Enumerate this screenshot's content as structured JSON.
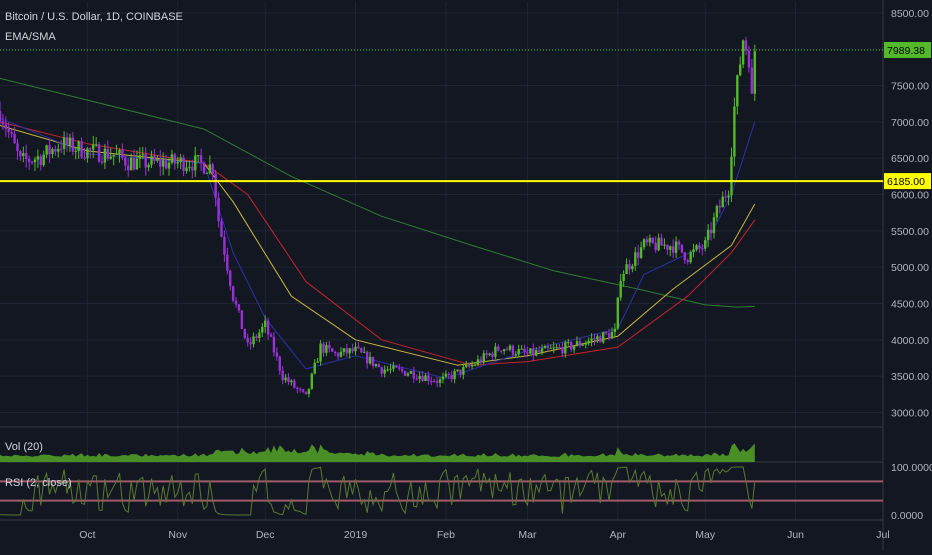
{
  "header": {
    "title": "Bitcoin / U.S. Dollar, 1D, COINBASE",
    "indicator": "EMA/SMA"
  },
  "panes": {
    "volume_label": "Vol (20)",
    "rsi_label": "RSI (2, close)"
  },
  "colors": {
    "background": "#131722",
    "grid": "#1e2433",
    "up": "#53b928",
    "down": "#9b30d9",
    "hline": "#ffff00",
    "price_line": "#53b928",
    "ema_fast": "#2a32a8",
    "ema_mid": "#c8b63a",
    "ema_slow": "#c8242a",
    "sma_long": "#2e7d32",
    "volume": "#4a8f26",
    "rsi_line": "#5a7a30",
    "rsi_band": "#a05a6a"
  },
  "chart_data": {
    "type": "candlestick",
    "symbol": "Bitcoin / U.S. Dollar, 1D, COINBASE",
    "x_ticks": [
      "Oct",
      "Nov",
      "Dec",
      "2019",
      "Feb",
      "Mar",
      "Apr",
      "May",
      "Jun",
      "Jul"
    ],
    "y_ticks": [
      "8500.00",
      "8000.00",
      "7500.00",
      "7000.00",
      "6500.00",
      "6000.00",
      "5500.00",
      "5000.00",
      "4500.00",
      "4000.00",
      "3500.00",
      "3000.00"
    ],
    "ylim": [
      2800,
      8650
    ],
    "x_range": [
      "2018-09-01",
      "2019-07-01"
    ],
    "last_price": "7989.38",
    "horizontal_line": "6185.00",
    "closes": [
      {
        "date": "2018-09-01",
        "close": 7150
      },
      {
        "date": "2018-09-08",
        "close": 6450
      },
      {
        "date": "2018-09-15",
        "close": 6520
      },
      {
        "date": "2018-09-22",
        "close": 6700
      },
      {
        "date": "2018-10-01",
        "close": 6600
      },
      {
        "date": "2018-10-10",
        "close": 6550
      },
      {
        "date": "2018-10-15",
        "close": 6450
      },
      {
        "date": "2018-10-25",
        "close": 6430
      },
      {
        "date": "2018-11-05",
        "close": 6450
      },
      {
        "date": "2018-11-13",
        "close": 6380
      },
      {
        "date": "2018-11-15",
        "close": 5650
      },
      {
        "date": "2018-11-20",
        "close": 4600
      },
      {
        "date": "2018-11-25",
        "close": 3900
      },
      {
        "date": "2018-12-01",
        "close": 4200
      },
      {
        "date": "2018-12-07",
        "close": 3500
      },
      {
        "date": "2018-12-15",
        "close": 3200
      },
      {
        "date": "2018-12-20",
        "close": 3900
      },
      {
        "date": "2018-12-25",
        "close": 3800
      },
      {
        "date": "2019-01-01",
        "close": 3850
      },
      {
        "date": "2019-01-10",
        "close": 3600
      },
      {
        "date": "2019-01-20",
        "close": 3550
      },
      {
        "date": "2019-01-30",
        "close": 3430
      },
      {
        "date": "2019-02-08",
        "close": 3600
      },
      {
        "date": "2019-02-20",
        "close": 3900
      },
      {
        "date": "2019-03-01",
        "close": 3800
      },
      {
        "date": "2019-03-15",
        "close": 3900
      },
      {
        "date": "2019-03-31",
        "close": 4100
      },
      {
        "date": "2019-04-02",
        "close": 4900
      },
      {
        "date": "2019-04-10",
        "close": 5300
      },
      {
        "date": "2019-04-20",
        "close": 5300
      },
      {
        "date": "2019-04-25",
        "close": 5150
      },
      {
        "date": "2019-05-01",
        "close": 5300
      },
      {
        "date": "2019-05-05",
        "close": 5750
      },
      {
        "date": "2019-05-09",
        "close": 6100
      },
      {
        "date": "2019-05-11",
        "close": 7200
      },
      {
        "date": "2019-05-14",
        "close": 8150
      },
      {
        "date": "2019-05-16",
        "close": 7900
      },
      {
        "date": "2019-05-17",
        "close": 7300
      },
      {
        "date": "2019-05-18",
        "close": 7989
      }
    ],
    "ema_fast": [
      {
        "date": "2018-09-01",
        "value": 7050
      },
      {
        "date": "2018-10-01",
        "value": 6560
      },
      {
        "date": "2018-11-10",
        "value": 6430
      },
      {
        "date": "2018-11-20",
        "value": 5200
      },
      {
        "date": "2018-12-01",
        "value": 4300
      },
      {
        "date": "2018-12-15",
        "value": 3600
      },
      {
        "date": "2019-01-01",
        "value": 3780
      },
      {
        "date": "2019-02-01",
        "value": 3470
      },
      {
        "date": "2019-03-01",
        "value": 3850
      },
      {
        "date": "2019-04-01",
        "value": 4150
      },
      {
        "date": "2019-04-10",
        "value": 4900
      },
      {
        "date": "2019-05-01",
        "value": 5300
      },
      {
        "date": "2019-05-10",
        "value": 6000
      },
      {
        "date": "2019-05-18",
        "value": 7000
      }
    ],
    "ema_mid": [
      {
        "date": "2018-09-01",
        "value": 6950
      },
      {
        "date": "2018-10-01",
        "value": 6600
      },
      {
        "date": "2018-11-10",
        "value": 6430
      },
      {
        "date": "2018-11-20",
        "value": 5900
      },
      {
        "date": "2018-12-10",
        "value": 4600
      },
      {
        "date": "2019-01-01",
        "value": 4000
      },
      {
        "date": "2019-02-05",
        "value": 3650
      },
      {
        "date": "2019-03-01",
        "value": 3780
      },
      {
        "date": "2019-04-01",
        "value": 4050
      },
      {
        "date": "2019-04-20",
        "value": 4700
      },
      {
        "date": "2019-05-10",
        "value": 5300
      },
      {
        "date": "2019-05-18",
        "value": 5870
      }
    ],
    "ema_slow": [
      {
        "date": "2018-09-01",
        "value": 7000
      },
      {
        "date": "2018-10-01",
        "value": 6700
      },
      {
        "date": "2018-11-10",
        "value": 6430
      },
      {
        "date": "2018-11-25",
        "value": 6000
      },
      {
        "date": "2018-12-15",
        "value": 4800
      },
      {
        "date": "2019-01-10",
        "value": 4000
      },
      {
        "date": "2019-02-10",
        "value": 3650
      },
      {
        "date": "2019-03-01",
        "value": 3700
      },
      {
        "date": "2019-04-01",
        "value": 3900
      },
      {
        "date": "2019-04-25",
        "value": 4600
      },
      {
        "date": "2019-05-10",
        "value": 5200
      },
      {
        "date": "2019-05-18",
        "value": 5650
      }
    ],
    "sma_long": [
      {
        "date": "2018-09-01",
        "value": 7600
      },
      {
        "date": "2018-10-01",
        "value": 7300
      },
      {
        "date": "2018-11-10",
        "value": 6900
      },
      {
        "date": "2018-12-10",
        "value": 6250
      },
      {
        "date": "2019-01-10",
        "value": 5700
      },
      {
        "date": "2019-02-10",
        "value": 5300
      },
      {
        "date": "2019-03-10",
        "value": 4950
      },
      {
        "date": "2019-04-10",
        "value": 4680
      },
      {
        "date": "2019-05-01",
        "value": 4480
      },
      {
        "date": "2019-05-12",
        "value": 4450
      },
      {
        "date": "2019-05-18",
        "value": 4460
      }
    ],
    "rsi": {
      "upper": 70,
      "lower": 30,
      "ylim": [
        0,
        100
      ],
      "y_ticks": [
        "100.0000",
        "0.0000"
      ]
    }
  }
}
